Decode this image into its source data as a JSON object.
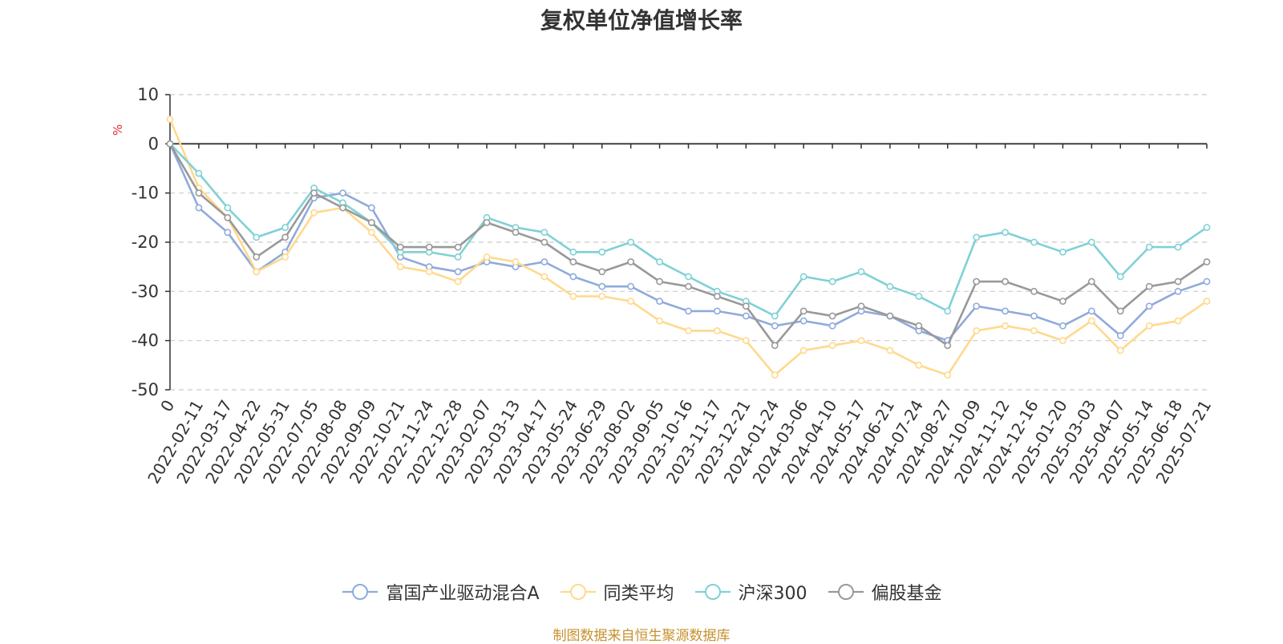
{
  "chart_data": {
    "type": "line",
    "title": "复权单位净值增长率",
    "ylabel": "%",
    "ylim": [
      -50,
      10
    ],
    "yticks": [
      10,
      0,
      -10,
      -20,
      -30,
      -40,
      -50
    ],
    "x_labels": [
      "0",
      "2022-02-11",
      "2022-03-17",
      "2022-04-22",
      "2022-05-31",
      "2022-07-05",
      "2022-08-08",
      "2022-09-09",
      "2022-10-21",
      "2022-11-24",
      "2022-12-28",
      "2023-02-07",
      "2023-03-13",
      "2023-04-17",
      "2023-05-24",
      "2023-06-29",
      "2023-08-02",
      "2023-09-05",
      "2023-10-16",
      "2023-11-17",
      "2023-12-21",
      "2024-01-24",
      "2024-03-06",
      "2024-04-10",
      "2024-05-17",
      "2024-06-21",
      "2024-07-24",
      "2024-08-27",
      "2024-10-09",
      "2024-11-12",
      "2024-12-16",
      "2025-01-20",
      "2025-03-03",
      "2025-04-07",
      "2025-05-14",
      "2025-06-18",
      "2025-07-21"
    ],
    "grid": true,
    "legend_position": "bottom",
    "series": [
      {
        "name": "富国产业驱动混合A",
        "color": "#8faadc",
        "values": [
          0,
          -13,
          -18,
          -26,
          -22,
          -11,
          -10,
          -13,
          -23,
          -25,
          -26,
          -24,
          -25,
          -24,
          -27,
          -29,
          -29,
          -32,
          -34,
          -34,
          -35,
          -37,
          -36,
          -37,
          -34,
          -35,
          -38,
          -40,
          -33,
          -34,
          -35,
          -37,
          -34,
          -39,
          -33,
          -30,
          -28
        ]
      },
      {
        "name": "同类平均",
        "color": "#ffd98c",
        "values": [
          5,
          -9,
          -15,
          -26,
          -23,
          -14,
          -13,
          -18,
          -25,
          -26,
          -28,
          -23,
          -24,
          -27,
          -31,
          -31,
          -32,
          -36,
          -38,
          -38,
          -40,
          -47,
          -42,
          -41,
          -40,
          -42,
          -45,
          -47,
          -38,
          -37,
          -38,
          -40,
          -36,
          -42,
          -37,
          -36,
          -32
        ]
      },
      {
        "name": "沪深300",
        "color": "#7fd1d6",
        "values": [
          0,
          -6,
          -13,
          -19,
          -17,
          -9,
          -12,
          -16,
          -22,
          -22,
          -23,
          -15,
          -17,
          -18,
          -22,
          -22,
          -20,
          -24,
          -27,
          -30,
          -32,
          -35,
          -27,
          -28,
          -26,
          -29,
          -31,
          -34,
          -19,
          -18,
          -20,
          -22,
          -20,
          -27,
          -21,
          -21,
          -17
        ]
      },
      {
        "name": "偏股基金",
        "color": "#999999",
        "values": [
          0,
          -10,
          -15,
          -23,
          -19,
          -10,
          -13,
          -16,
          -21,
          -21,
          -21,
          -16,
          -18,
          -20,
          -24,
          -26,
          -24,
          -28,
          -29,
          -31,
          -33,
          -41,
          -34,
          -35,
          -33,
          -35,
          -37,
          -41,
          -28,
          -28,
          -30,
          -32,
          -28,
          -34,
          -29,
          -28,
          -24
        ]
      }
    ]
  },
  "source_text": "制图数据来自恒生聚源数据库",
  "source_color": "#c7912e"
}
